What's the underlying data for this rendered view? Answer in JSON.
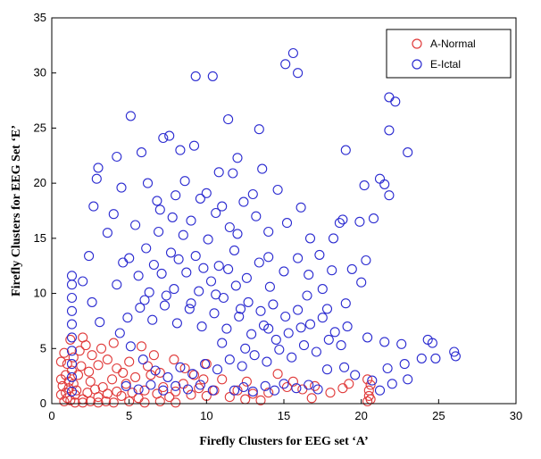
{
  "chart_data": {
    "type": "scatter",
    "xlabel": "Firefly Clusters for EEG set ‘A’",
    "ylabel": "Firefly Clusters for EEG Set ‘E’",
    "xlim": [
      0,
      30
    ],
    "ylim": [
      0,
      35
    ],
    "xticks": [
      "0",
      "5",
      "10",
      "15",
      "20",
      "25",
      "30"
    ],
    "yticks": [
      "0",
      "5",
      "10",
      "15",
      "20",
      "25",
      "30",
      "35"
    ],
    "grid": false,
    "legend_position": "top-right",
    "marker": "open-circle",
    "series": [
      {
        "name": "A-Normal",
        "color": "#e03a3a",
        "points": [
          [
            0.8,
            0.2
          ],
          [
            1.0,
            0.5
          ],
          [
            0.9,
            1.0
          ],
          [
            1.2,
            0.3
          ],
          [
            1.5,
            0.8
          ],
          [
            0.7,
            1.6
          ],
          [
            1.1,
            2.0
          ],
          [
            1.6,
            1.2
          ],
          [
            2.0,
            0.4
          ],
          [
            2.3,
            1.0
          ],
          [
            0.9,
            2.6
          ],
          [
            1.3,
            3.0
          ],
          [
            1.0,
            3.6
          ],
          [
            1.4,
            4.2
          ],
          [
            1.8,
            4.8
          ],
          [
            2.2,
            5.3
          ],
          [
            1.2,
            5.8
          ],
          [
            1.7,
            2.6
          ],
          [
            2.5,
            2.0
          ],
          [
            2.8,
            1.3
          ],
          [
            3.0,
            0.6
          ],
          [
            3.3,
            1.5
          ],
          [
            3.6,
            0.9
          ],
          [
            3.9,
            2.2
          ],
          [
            4.2,
            1.1
          ],
          [
            4.5,
            0.7
          ],
          [
            4.8,
            1.8
          ],
          [
            5.2,
            1.0
          ],
          [
            5.6,
            0.5
          ],
          [
            6.0,
            1.2
          ],
          [
            6.4,
            2.6
          ],
          [
            6.8,
            0.9
          ],
          [
            7.2,
            1.5
          ],
          [
            7.6,
            0.6
          ],
          [
            8.0,
            1.1
          ],
          [
            8.5,
            1.8
          ],
          [
            9.0,
            0.8
          ],
          [
            9.5,
            1.4
          ],
          [
            10.0,
            0.7
          ],
          [
            10.5,
            1.2
          ],
          [
            3.0,
            3.5
          ],
          [
            3.6,
            4.0
          ],
          [
            4.2,
            3.2
          ],
          [
            4.6,
            2.8
          ],
          [
            5.0,
            3.8
          ],
          [
            2.6,
            4.4
          ],
          [
            3.2,
            5.0
          ],
          [
            5.4,
            2.4
          ],
          [
            6.2,
            3.4
          ],
          [
            7.0,
            2.8
          ],
          [
            1.5,
            0.1
          ],
          [
            2.0,
            0.1
          ],
          [
            2.5,
            0.2
          ],
          [
            3.0,
            0.1
          ],
          [
            3.5,
            0.2
          ],
          [
            4.0,
            0.1
          ],
          [
            5.0,
            0.2
          ],
          [
            6.0,
            0.1
          ],
          [
            7.0,
            0.2
          ],
          [
            8.0,
            0.1
          ],
          [
            11.5,
            0.6
          ],
          [
            12.0,
            1.2
          ],
          [
            12.5,
            0.4
          ],
          [
            13.0,
            0.9
          ],
          [
            14.0,
            1.0
          ],
          [
            15.2,
            1.5
          ],
          [
            15.6,
            2.0
          ],
          [
            16.2,
            1.3
          ],
          [
            17.0,
            1.6
          ],
          [
            18.0,
            1.0
          ],
          [
            18.8,
            1.4
          ],
          [
            19.2,
            1.8
          ],
          [
            20.4,
            0.2
          ],
          [
            20.5,
            0.7
          ],
          [
            20.5,
            1.2
          ],
          [
            20.6,
            1.7
          ],
          [
            20.4,
            2.2
          ],
          [
            20.6,
            0.4
          ],
          [
            14.6,
            2.7
          ],
          [
            10.0,
            3.6
          ],
          [
            9.2,
            2.6
          ],
          [
            8.6,
            3.2
          ],
          [
            11.0,
            2.2
          ],
          [
            5.8,
            5.2
          ],
          [
            4.0,
            5.5
          ],
          [
            2.0,
            6.0
          ],
          [
            6.6,
            4.4
          ],
          [
            0.6,
            0.8
          ],
          [
            0.6,
            2.2
          ],
          [
            0.6,
            3.8
          ],
          [
            1.9,
            3.4
          ],
          [
            2.4,
            2.9
          ],
          [
            1.1,
            1.4
          ],
          [
            1.4,
            1.8
          ],
          [
            0.8,
            4.6
          ],
          [
            12.6,
            2.0
          ],
          [
            13.5,
            0.3
          ],
          [
            16.8,
            0.5
          ],
          [
            9.8,
            2.2
          ],
          [
            7.9,
            4.0
          ]
        ]
      },
      {
        "name": "E-Ictal",
        "color": "#2a2ad0",
        "points": [
          [
            15.1,
            30.8
          ],
          [
            15.6,
            31.8
          ],
          [
            15.9,
            30.0
          ],
          [
            9.3,
            29.7
          ],
          [
            10.4,
            29.7
          ],
          [
            21.8,
            27.8
          ],
          [
            22.2,
            27.4
          ],
          [
            5.1,
            26.1
          ],
          [
            11.4,
            25.8
          ],
          [
            21.8,
            24.8
          ],
          [
            7.2,
            24.1
          ],
          [
            7.6,
            24.3
          ],
          [
            13.4,
            24.9
          ],
          [
            8.3,
            23.0
          ],
          [
            9.2,
            23.4
          ],
          [
            23.0,
            22.8
          ],
          [
            5.8,
            22.8
          ],
          [
            12.0,
            22.3
          ],
          [
            19.0,
            23.0
          ],
          [
            3.0,
            21.4
          ],
          [
            2.9,
            20.4
          ],
          [
            11.7,
            20.9
          ],
          [
            4.5,
            19.6
          ],
          [
            21.2,
            20.4
          ],
          [
            21.5,
            19.9
          ],
          [
            20.2,
            19.8
          ],
          [
            14.6,
            19.4
          ],
          [
            18.6,
            16.4
          ],
          [
            18.8,
            16.7
          ],
          [
            19.9,
            16.5
          ],
          [
            20.8,
            16.8
          ],
          [
            21.8,
            18.9
          ],
          [
            20.3,
            13.0
          ],
          [
            19.4,
            12.2
          ],
          [
            20.0,
            11.0
          ],
          [
            20.4,
            6.0
          ],
          [
            21.5,
            5.6
          ],
          [
            22.6,
            5.4
          ],
          [
            24.3,
            5.8
          ],
          [
            24.6,
            5.5
          ],
          [
            26.0,
            4.7
          ],
          [
            26.1,
            4.3
          ],
          [
            24.8,
            4.1
          ],
          [
            23.9,
            4.1
          ],
          [
            22.8,
            3.6
          ],
          [
            21.7,
            3.2
          ],
          [
            20.7,
            2.1
          ],
          [
            19.6,
            2.6
          ],
          [
            18.9,
            3.3
          ],
          [
            17.8,
            3.1
          ],
          [
            2.7,
            17.9
          ],
          [
            3.6,
            15.5
          ],
          [
            2.4,
            13.4
          ],
          [
            2.0,
            11.1
          ],
          [
            2.6,
            9.2
          ],
          [
            3.1,
            7.4
          ],
          [
            4.2,
            10.8
          ],
          [
            4.6,
            12.8
          ],
          [
            4.0,
            17.2
          ],
          [
            6.2,
            20.0
          ],
          [
            6.8,
            18.4
          ],
          [
            7.8,
            16.9
          ],
          [
            8.6,
            20.2
          ],
          [
            9.6,
            18.6
          ],
          [
            10.6,
            17.3
          ],
          [
            11.5,
            16.0
          ],
          [
            12.4,
            18.3
          ],
          [
            13.2,
            17.0
          ],
          [
            14.0,
            15.6
          ],
          [
            15.2,
            16.4
          ],
          [
            16.1,
            17.8
          ],
          [
            16.7,
            15.0
          ],
          [
            17.3,
            13.5
          ],
          [
            18.1,
            12.1
          ],
          [
            17.5,
            10.4
          ],
          [
            16.6,
            11.7
          ],
          [
            15.9,
            13.2
          ],
          [
            15.0,
            12.0
          ],
          [
            14.1,
            10.6
          ],
          [
            13.4,
            12.8
          ],
          [
            12.6,
            11.4
          ],
          [
            11.8,
            13.9
          ],
          [
            10.8,
            12.5
          ],
          [
            10.1,
            14.9
          ],
          [
            9.3,
            13.4
          ],
          [
            8.5,
            15.3
          ],
          [
            7.7,
            13.7
          ],
          [
            6.9,
            15.6
          ],
          [
            6.1,
            14.1
          ],
          [
            5.4,
            16.2
          ],
          [
            5.0,
            13.2
          ],
          [
            5.6,
            11.6
          ],
          [
            6.3,
            10.1
          ],
          [
            7.1,
            11.8
          ],
          [
            7.9,
            10.4
          ],
          [
            8.7,
            11.9
          ],
          [
            9.5,
            10.2
          ],
          [
            10.3,
            11.1
          ],
          [
            11.1,
            9.6
          ],
          [
            11.9,
            10.7
          ],
          [
            12.7,
            9.2
          ],
          [
            13.5,
            8.4
          ],
          [
            14.3,
            9.0
          ],
          [
            15.1,
            7.9
          ],
          [
            15.9,
            8.5
          ],
          [
            16.7,
            7.2
          ],
          [
            17.5,
            7.8
          ],
          [
            18.3,
            6.5
          ],
          [
            19.1,
            7.0
          ],
          [
            18.7,
            5.3
          ],
          [
            17.9,
            5.8
          ],
          [
            17.1,
            4.7
          ],
          [
            16.3,
            5.3
          ],
          [
            15.5,
            4.2
          ],
          [
            14.7,
            4.9
          ],
          [
            13.9,
            3.8
          ],
          [
            13.1,
            4.4
          ],
          [
            12.3,
            3.4
          ],
          [
            11.5,
            4.0
          ],
          [
            10.7,
            3.1
          ],
          [
            9.9,
            3.6
          ],
          [
            9.1,
            2.7
          ],
          [
            8.3,
            3.3
          ],
          [
            7.5,
            2.4
          ],
          [
            6.7,
            3.0
          ],
          [
            5.9,
            4.0
          ],
          [
            5.1,
            5.2
          ],
          [
            4.4,
            6.4
          ],
          [
            4.9,
            7.8
          ],
          [
            5.7,
            8.7
          ],
          [
            6.5,
            7.6
          ],
          [
            7.3,
            8.9
          ],
          [
            8.1,
            7.3
          ],
          [
            8.9,
            8.6
          ],
          [
            9.7,
            7.0
          ],
          [
            10.5,
            8.2
          ],
          [
            11.3,
            6.8
          ],
          [
            12.1,
            7.9
          ],
          [
            12.9,
            6.3
          ],
          [
            13.7,
            7.1
          ],
          [
            14.5,
            5.8
          ],
          [
            15.3,
            6.4
          ],
          [
            16.1,
            6.9
          ],
          [
            6.0,
            9.4
          ],
          [
            6.6,
            12.6
          ],
          [
            7.4,
            9.8
          ],
          [
            8.2,
            13.1
          ],
          [
            9.0,
            9.1
          ],
          [
            9.8,
            12.3
          ],
          [
            10.6,
            9.9
          ],
          [
            11.4,
            12.2
          ],
          [
            12.2,
            8.6
          ],
          [
            7.0,
            17.6
          ],
          [
            8.0,
            18.9
          ],
          [
            9.0,
            16.6
          ],
          [
            10.0,
            19.1
          ],
          [
            11.0,
            17.9
          ],
          [
            12.0,
            15.4
          ],
          [
            13.0,
            19.0
          ],
          [
            14.0,
            13.3
          ],
          [
            1.3,
            1.1
          ],
          [
            1.3,
            2.4
          ],
          [
            1.3,
            3.6
          ],
          [
            1.3,
            4.8
          ],
          [
            1.3,
            6.0
          ],
          [
            1.3,
            7.2
          ],
          [
            1.3,
            8.4
          ],
          [
            1.3,
            9.6
          ],
          [
            1.3,
            10.8
          ],
          [
            1.3,
            11.6
          ],
          [
            11.8,
            1.2
          ],
          [
            12.4,
            1.5
          ],
          [
            13.0,
            1.1
          ],
          [
            13.8,
            1.6
          ],
          [
            14.4,
            1.2
          ],
          [
            15.0,
            1.8
          ],
          [
            15.8,
            1.4
          ],
          [
            16.6,
            1.7
          ],
          [
            17.2,
            1.3
          ],
          [
            22.0,
            1.8
          ],
          [
            23.0,
            2.2
          ],
          [
            21.2,
            1.2
          ],
          [
            4.8,
            1.6
          ],
          [
            5.6,
            1.3
          ],
          [
            6.4,
            1.7
          ],
          [
            7.2,
            1.2
          ],
          [
            8.0,
            1.6
          ],
          [
            8.8,
            1.3
          ],
          [
            9.6,
            1.7
          ],
          [
            10.4,
            1.2
          ],
          [
            11.0,
            5.5
          ],
          [
            12.5,
            5.0
          ],
          [
            14.0,
            6.8
          ],
          [
            16.5,
            9.8
          ],
          [
            17.8,
            8.6
          ],
          [
            19.0,
            9.1
          ],
          [
            18.2,
            15.0
          ],
          [
            13.6,
            21.3
          ],
          [
            10.8,
            21.0
          ],
          [
            4.2,
            22.4
          ]
        ]
      }
    ]
  }
}
